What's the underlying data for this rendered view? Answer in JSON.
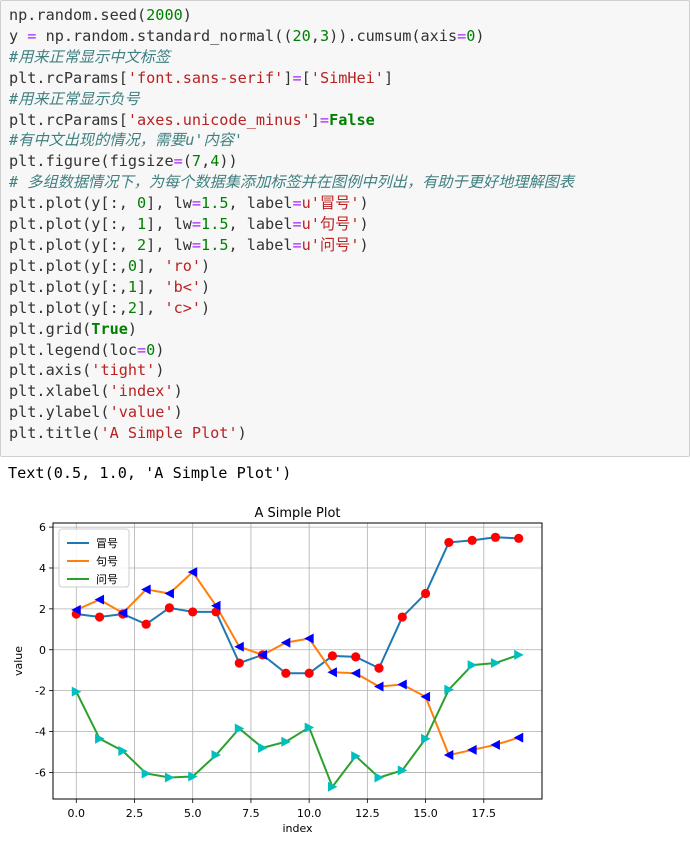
{
  "code_lines": [
    [
      [
        "t",
        "np.random.seed("
      ],
      [
        "num",
        "2000"
      ],
      [
        "t",
        ")"
      ]
    ],
    [
      [
        "t",
        "y "
      ],
      [
        "op",
        "="
      ],
      [
        "t",
        " np.random.standard_normal(("
      ],
      [
        "num",
        "20"
      ],
      [
        "t",
        ","
      ],
      [
        "num",
        "3"
      ],
      [
        "t",
        ")).cumsum(axis"
      ],
      [
        "op",
        "="
      ],
      [
        "num",
        "0"
      ],
      [
        "t",
        ")"
      ]
    ],
    [
      [
        "cm",
        "#用来正常显示中文标签"
      ]
    ],
    [
      [
        "t",
        "plt.rcParams["
      ],
      [
        "str",
        "'font.sans-serif'"
      ],
      [
        "t",
        "]"
      ],
      [
        "op",
        "="
      ],
      [
        "t",
        "["
      ],
      [
        "str",
        "'SimHei'"
      ],
      [
        "t",
        "]"
      ]
    ],
    [
      [
        "cm",
        "#用来正常显示负号"
      ]
    ],
    [
      [
        "t",
        "plt.rcParams["
      ],
      [
        "str",
        "'axes.unicode_minus'"
      ],
      [
        "t",
        "]"
      ],
      [
        "op",
        "="
      ],
      [
        "kw",
        "False"
      ]
    ],
    [
      [
        "cm",
        "#有中文出现的情况，需要u'内容'"
      ]
    ],
    [
      [
        "t",
        "plt.figure(figsize"
      ],
      [
        "op",
        "="
      ],
      [
        "t",
        "("
      ],
      [
        "num",
        "7"
      ],
      [
        "t",
        ","
      ],
      [
        "num",
        "4"
      ],
      [
        "t",
        "))"
      ]
    ],
    [
      [
        "cm",
        "# 多组数据情况下，为每个数据集添加标签并在图例中列出，有助于更好地理解图表"
      ]
    ],
    [
      [
        "t",
        "plt.plot(y[:, "
      ],
      [
        "num",
        "0"
      ],
      [
        "t",
        "], lw"
      ],
      [
        "op",
        "="
      ],
      [
        "num",
        "1.5"
      ],
      [
        "t",
        ", label"
      ],
      [
        "op",
        "="
      ],
      [
        "str",
        "u'冒号'"
      ],
      [
        "t",
        ")"
      ]
    ],
    [
      [
        "t",
        "plt.plot(y[:, "
      ],
      [
        "num",
        "1"
      ],
      [
        "t",
        "], lw"
      ],
      [
        "op",
        "="
      ],
      [
        "num",
        "1.5"
      ],
      [
        "t",
        ", label"
      ],
      [
        "op",
        "="
      ],
      [
        "str",
        "u'句号'"
      ],
      [
        "t",
        ")"
      ]
    ],
    [
      [
        "t",
        "plt.plot(y[:, "
      ],
      [
        "num",
        "2"
      ],
      [
        "t",
        "], lw"
      ],
      [
        "op",
        "="
      ],
      [
        "num",
        "1.5"
      ],
      [
        "t",
        ", label"
      ],
      [
        "op",
        "="
      ],
      [
        "str",
        "u'问号'"
      ],
      [
        "t",
        ")"
      ]
    ],
    [
      [
        "t",
        "plt.plot(y[:,"
      ],
      [
        "num",
        "0"
      ],
      [
        "t",
        "], "
      ],
      [
        "str",
        "'ro'"
      ],
      [
        "t",
        ")"
      ]
    ],
    [
      [
        "t",
        "plt.plot(y[:,"
      ],
      [
        "num",
        "1"
      ],
      [
        "t",
        "], "
      ],
      [
        "str",
        "'b<'"
      ],
      [
        "t",
        ")"
      ]
    ],
    [
      [
        "t",
        "plt.plot(y[:,"
      ],
      [
        "num",
        "2"
      ],
      [
        "t",
        "], "
      ],
      [
        "str",
        "'c>'"
      ],
      [
        "t",
        ")"
      ]
    ],
    [
      [
        "t",
        "plt.grid("
      ],
      [
        "kw",
        "True"
      ],
      [
        "t",
        ")"
      ]
    ],
    [
      [
        "t",
        "plt.legend(loc"
      ],
      [
        "op",
        "="
      ],
      [
        "num",
        "0"
      ],
      [
        "t",
        ")"
      ]
    ],
    [
      [
        "t",
        "plt.axis("
      ],
      [
        "str",
        "'tight'"
      ],
      [
        "t",
        ")"
      ]
    ],
    [
      [
        "t",
        "plt.xlabel("
      ],
      [
        "str",
        "'index'"
      ],
      [
        "t",
        ")"
      ]
    ],
    [
      [
        "t",
        "plt.ylabel("
      ],
      [
        "str",
        "'value'"
      ],
      [
        "t",
        ")"
      ]
    ],
    [
      [
        "t",
        "plt.title("
      ],
      [
        "str",
        "'A Simple Plot'"
      ],
      [
        "t",
        ")"
      ]
    ]
  ],
  "output_text": "Text(0.5, 1.0, 'A Simple Plot')",
  "colors": {
    "c0": "#1f77b4",
    "c1": "#ff7f0e",
    "c2": "#2ca02c",
    "red": "#ff0000",
    "blue": "#0000ff",
    "cyan": "#00bfbf"
  },
  "chart_data": {
    "type": "line",
    "title": "A Simple Plot",
    "xlabel": "index",
    "ylabel": "value",
    "xlim": [
      -1,
      20
    ],
    "ylim": [
      -7.3,
      6.2
    ],
    "xticks": [
      "0.0",
      "2.5",
      "5.0",
      "7.5",
      "10.0",
      "12.5",
      "15.0",
      "17.5"
    ],
    "yticks": [
      "6",
      "4",
      "2",
      "0",
      "-2",
      "-4",
      "-6"
    ],
    "grid": true,
    "legend_position": "top-left",
    "x": [
      0,
      1,
      2,
      3,
      4,
      5,
      6,
      7,
      8,
      9,
      10,
      11,
      12,
      13,
      14,
      15,
      16,
      17,
      18,
      19
    ],
    "series": [
      {
        "name": "冒号",
        "marker": "ro",
        "values": [
          1.75,
          1.6,
          1.75,
          1.25,
          2.05,
          1.85,
          1.85,
          -0.65,
          -0.25,
          -1.15,
          -1.15,
          -0.3,
          -0.35,
          -0.9,
          1.6,
          2.75,
          5.25,
          5.35,
          5.5,
          5.45
        ]
      },
      {
        "name": "句号",
        "marker": "b<",
        "values": [
          1.95,
          2.45,
          1.8,
          2.95,
          2.75,
          3.8,
          2.15,
          0.15,
          -0.25,
          0.35,
          0.55,
          -1.1,
          -1.15,
          -1.8,
          -1.7,
          -2.3,
          -5.15,
          -4.9,
          -4.65,
          -4.3
        ]
      },
      {
        "name": "问号",
        "marker": "c>",
        "values": [
          -2.05,
          -4.35,
          -4.95,
          -6.05,
          -6.25,
          -6.2,
          -5.15,
          -3.85,
          -4.8,
          -4.5,
          -3.8,
          -6.7,
          -5.2,
          -6.25,
          -5.9,
          -4.35,
          -1.95,
          -0.75,
          -0.65,
          -0.25
        ]
      }
    ]
  }
}
